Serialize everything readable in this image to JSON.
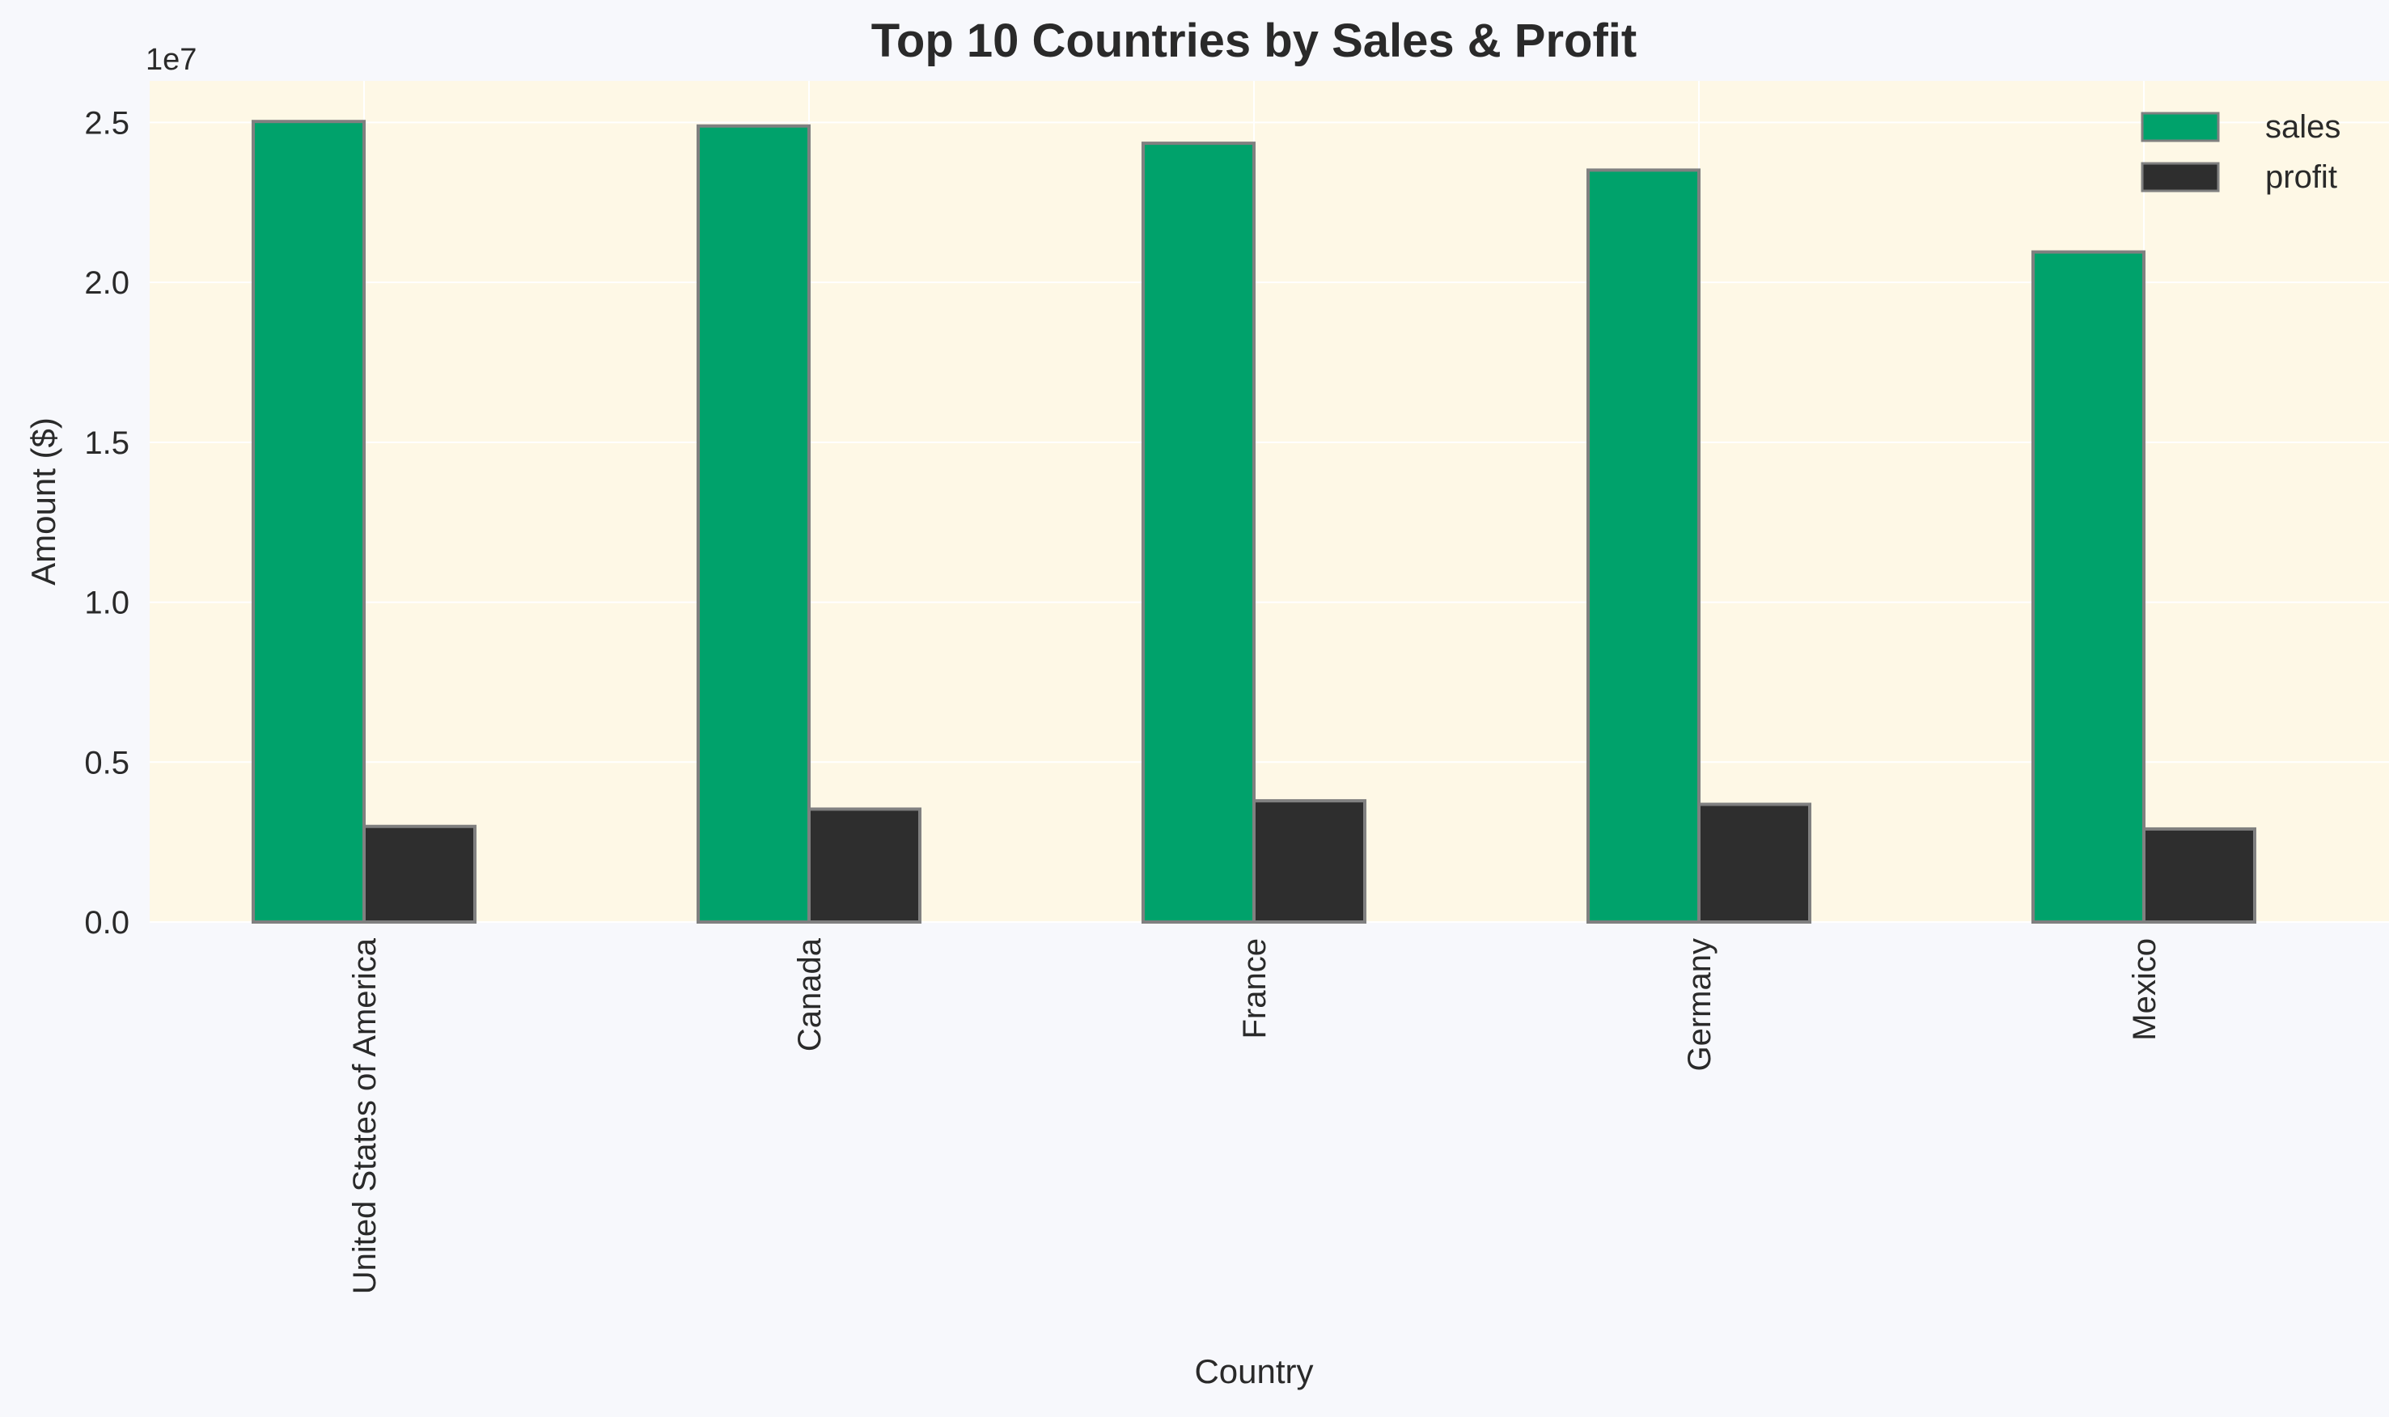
{
  "colors": {
    "page_background": "#f7f8fc",
    "plot_background": "#fef8e6",
    "grid": "#ffffff",
    "bar_edge": "#808080",
    "sales": "#00a26b",
    "profit": "#2e2e2e",
    "text": "#2a2a2a"
  },
  "chart_data": {
    "type": "bar",
    "title": "Top 10 Countries by Sales & Profit",
    "xlabel": "Country",
    "ylabel": "Amount ($)",
    "y_offset_label": "1e7",
    "categories": [
      "United States of America",
      "Canada",
      "France",
      "Germany",
      "Mexico"
    ],
    "series": [
      {
        "name": "sales",
        "color": "#00a26b",
        "values": [
          25030000,
          24890000,
          24350000,
          23510000,
          20950000
        ]
      },
      {
        "name": "profit",
        "color": "#2e2e2e",
        "values": [
          2990000,
          3530000,
          3790000,
          3680000,
          2910000
        ]
      }
    ],
    "ylim": [
      0,
      26300000
    ],
    "yticks": [
      0,
      5000000,
      10000000,
      15000000,
      20000000,
      25000000
    ],
    "ytick_labels": [
      "0.0",
      "0.5",
      "1.0",
      "1.5",
      "2.0",
      "2.5"
    ],
    "grid": true,
    "legend_position": "top-right",
    "x_tick_rotation": "vertical"
  }
}
